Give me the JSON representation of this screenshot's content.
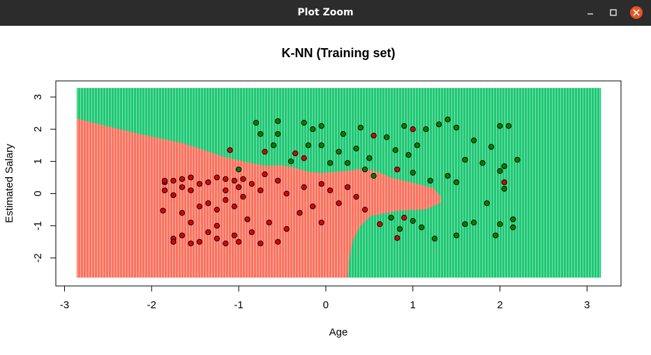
{
  "window": {
    "title": "Plot Zoom"
  },
  "chart_data": {
    "type": "scatter",
    "title": "K-NN (Training set)",
    "xlabel": "Age",
    "ylabel": "Estimated Salary",
    "xlim": [
      -3.1,
      3.39
    ],
    "ylim": [
      -2.87,
      3.5
    ],
    "xticks": [
      -3,
      -2,
      -1,
      0,
      1,
      2,
      3
    ],
    "yticks": [
      -2,
      -1,
      0,
      1,
      2,
      3
    ],
    "regions": [
      {
        "color": "#1ec873",
        "x": [
          -2.86,
          3.16,
          3.16,
          -2.86
        ],
        "y": [
          3.28,
          3.28,
          -2.61,
          -2.61
        ]
      },
      {
        "color": "#fa7360",
        "x": [
          -2.86,
          -2.54,
          -2.14,
          -1.65,
          -1.41,
          -1.17,
          -0.93,
          -0.69,
          -0.53,
          -0.37,
          -0.21,
          -0.05,
          0.27,
          0.43,
          0.59,
          0.75,
          0.99,
          1.23,
          1.31,
          1.33,
          1.15,
          0.83,
          0.51,
          0.39,
          0.31,
          0.27,
          0.25,
          -2.86
        ],
        "y": [
          2.33,
          2.11,
          1.85,
          1.57,
          1.36,
          1.14,
          0.99,
          0.86,
          0.88,
          0.81,
          0.68,
          0.64,
          0.71,
          0.77,
          0.68,
          0.49,
          0.34,
          0.17,
          -0.05,
          -0.27,
          -0.49,
          -0.53,
          -0.7,
          -1.03,
          -1.46,
          -2.0,
          -2.61,
          -2.61
        ]
      }
    ],
    "series": [
      {
        "color": "#e00000",
        "x": [
          -1.85,
          -1.85,
          -1.85,
          -1.87,
          -1.75,
          -1.75,
          -1.75,
          -1.75,
          -1.65,
          -1.65,
          -1.65,
          -1.65,
          -1.55,
          -1.55,
          -1.55,
          -1.55,
          -1.45,
          -1.45,
          -1.45,
          -1.35,
          -1.35,
          -1.35,
          -1.25,
          -1.25,
          -1.25,
          -1.25,
          -1.15,
          -1.15,
          -1.15,
          -1.15,
          -1.1,
          -1.05,
          -1.05,
          -1.05,
          -1.0,
          -1.0,
          -0.95,
          -0.95,
          -0.9,
          -0.85,
          -0.85,
          -0.75,
          -0.75,
          -0.7,
          -0.7,
          -0.65,
          -0.55,
          -0.55,
          -0.45,
          -0.45,
          -0.35,
          -0.3,
          -0.25,
          -0.25,
          -0.15,
          -0.05,
          -0.05,
          0.05,
          0.15,
          0.25,
          0.35,
          0.45,
          0.55,
          0.62,
          0.82,
          0.9,
          1.0,
          0.82,
          2.05
        ],
        "y": [
          0.35,
          0.4,
          0.1,
          -0.53,
          0.4,
          -0.05,
          -1.4,
          -1.5,
          0.45,
          0.2,
          -0.6,
          -1.3,
          0.5,
          0.1,
          -0.9,
          -1.55,
          0.3,
          -0.4,
          -1.5,
          0.35,
          -0.3,
          -1.2,
          0.5,
          -0.5,
          -1.0,
          -1.4,
          0.45,
          0.1,
          -0.2,
          -1.55,
          1.35,
          0.4,
          -0.4,
          -1.3,
          0.2,
          -1.5,
          0.45,
          -0.1,
          -0.8,
          0.3,
          -1.2,
          0.1,
          -1.55,
          1.3,
          0.6,
          -0.9,
          0.4,
          -1.5,
          0.0,
          -1.1,
          1.25,
          -0.6,
          1.1,
          0.2,
          -0.4,
          0.3,
          -0.9,
          0.1,
          -0.3,
          0.2,
          -0.1,
          -0.5,
          1.8,
          -0.95,
          0.75,
          -0.75,
          2.0,
          -1.38,
          0.35
        ]
      },
      {
        "color": "#008000",
        "x": [
          -1.0,
          -0.8,
          -0.75,
          -0.6,
          -0.55,
          -0.55,
          -0.4,
          -0.25,
          -0.2,
          -0.15,
          -0.05,
          -0.05,
          0.05,
          0.15,
          0.2,
          0.25,
          0.35,
          0.4,
          0.45,
          0.5,
          0.55,
          0.7,
          0.75,
          0.8,
          0.85,
          0.9,
          0.95,
          1.0,
          1.0,
          1.05,
          1.1,
          1.15,
          1.2,
          1.25,
          1.3,
          1.4,
          1.4,
          1.5,
          1.5,
          1.5,
          1.6,
          1.6,
          1.7,
          1.7,
          1.8,
          1.85,
          1.9,
          1.95,
          2.0,
          2.0,
          2.0,
          2.05,
          2.1,
          2.15,
          2.15,
          2.2,
          2.05
        ],
        "y": [
          0.75,
          2.2,
          1.85,
          1.5,
          2.25,
          1.85,
          1.0,
          2.2,
          1.5,
          2.0,
          2.1,
          1.5,
          0.95,
          1.3,
          1.85,
          0.95,
          1.4,
          2.05,
          0.75,
          1.1,
          0.55,
          1.75,
          -0.75,
          1.35,
          -1.1,
          2.1,
          1.2,
          -0.85,
          0.65,
          1.5,
          -1.05,
          2.0,
          0.4,
          -1.4,
          2.15,
          2.3,
          0.55,
          0.35,
          -1.3,
          2.05,
          -0.95,
          1.05,
          1.65,
          -0.9,
          0.95,
          -0.3,
          1.45,
          -1.3,
          0.7,
          2.1,
          -0.95,
          0.85,
          2.1,
          -1.05,
          -0.8,
          1.05,
          0.15
        ]
      }
    ]
  }
}
